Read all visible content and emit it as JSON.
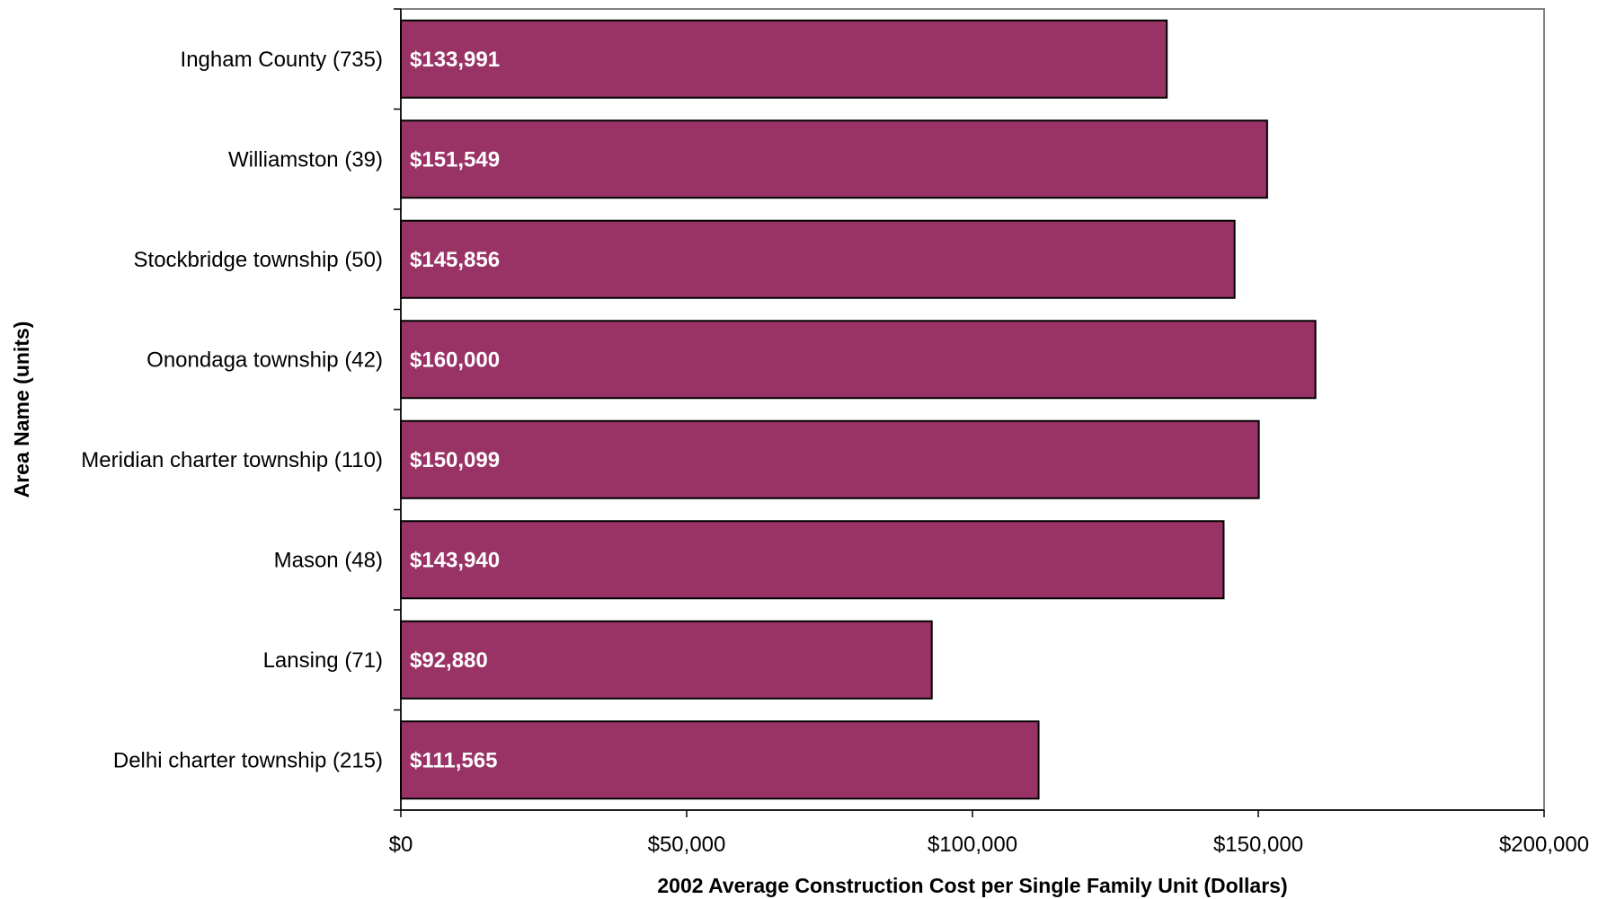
{
  "chart_data": {
    "type": "bar",
    "orientation": "horizontal",
    "categories": [
      "Ingham County (735)",
      "Williamston (39)",
      "Stockbridge township (50)",
      "Onondaga township (42)",
      "Meridian charter township (110)",
      "Mason (48)",
      "Lansing (71)",
      "Delhi charter township (215)"
    ],
    "values": [
      133991,
      151549,
      145856,
      160000,
      150099,
      143940,
      92880,
      111565
    ],
    "value_labels": [
      "$133,991",
      "$151,549",
      "$145,856",
      "$160,000",
      "$150,099",
      "$143,940",
      "$92,880",
      "$111,565"
    ],
    "xlabel": "2002 Average Construction Cost per Single Family Unit (Dollars)",
    "ylabel": "Area Name (units)",
    "xlim": [
      0,
      200000
    ],
    "x_ticks": [
      0,
      50000,
      100000,
      150000,
      200000
    ],
    "x_tick_labels": [
      "$0",
      "$50,000",
      "$100,000",
      "$150,000",
      "$200,000"
    ],
    "grid": false,
    "bar_color": "#993366",
    "bar_edge_color": "#000000"
  }
}
